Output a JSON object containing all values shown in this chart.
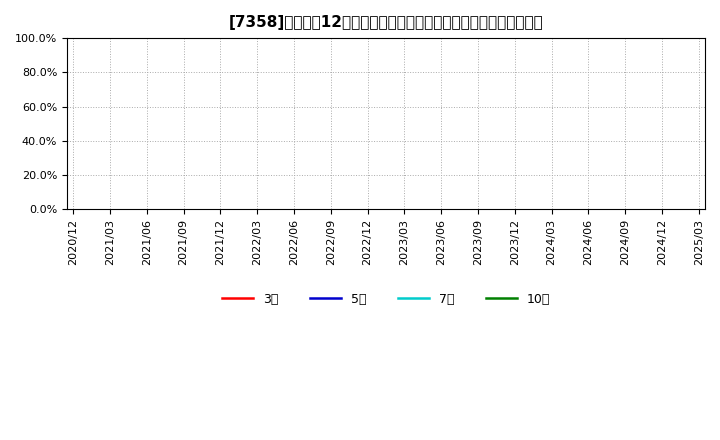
{
  "title": "[7358]　売上高12か月移動合計の対前年同期増減率の平均値の推移",
  "ylim": [
    0.0,
    1.0
  ],
  "yticks": [
    0.0,
    0.2,
    0.4,
    0.6,
    0.8,
    1.0
  ],
  "ytick_labels": [
    "0.0%",
    "20.0%",
    "40.0%",
    "60.0%",
    "80.0%",
    "100.0%"
  ],
  "x_tick_labels": [
    "2020/12",
    "2021/03",
    "2021/06",
    "2021/09",
    "2021/12",
    "2022/03",
    "2022/06",
    "2022/09",
    "2022/12",
    "2023/03",
    "2023/06",
    "2023/09",
    "2023/12",
    "2024/03",
    "2024/06",
    "2024/09",
    "2024/12",
    "2025/03"
  ],
  "legend_labels": [
    "3年",
    "5年",
    "7年",
    "10年"
  ],
  "legend_colors": [
    "#ff0000",
    "#0000cd",
    "#00cccc",
    "#008000"
  ],
  "background_color": "#ffffff",
  "plot_bg_color": "#ffffff",
  "grid_color": "#aaaaaa",
  "title_fontsize": 11,
  "tick_fontsize": 8,
  "legend_fontsize": 9
}
